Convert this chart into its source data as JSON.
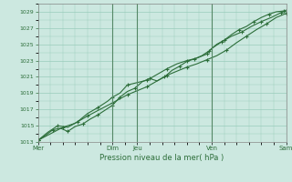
{
  "background_color": "#cce8e0",
  "plot_bg_color": "#cce8e0",
  "grid_color": "#99ccbb",
  "line_color": "#2d6e3a",
  "marker_color": "#2d6e3a",
  "xlabel": "Pression niveau de la mer( hPa )",
  "ylim": [
    1013,
    1030
  ],
  "yticks": [
    1013,
    1015,
    1017,
    1019,
    1021,
    1023,
    1025,
    1027,
    1029
  ],
  "xtick_labels": [
    "Mer",
    "Dim",
    "Jeu",
    "Ven",
    "Sam"
  ],
  "xtick_positions": [
    0,
    3,
    4,
    7,
    10
  ],
  "day_lines": [
    3,
    4,
    7,
    10
  ],
  "series1_x": [
    0.0,
    0.3,
    0.6,
    0.9,
    1.2,
    1.5,
    1.8,
    2.1,
    2.4,
    2.7,
    3.0,
    3.15,
    3.3,
    3.6,
    3.9,
    4.2,
    4.5,
    4.8,
    5.1,
    5.4,
    5.7,
    6.0,
    6.3,
    6.6,
    6.9,
    7.2,
    7.5,
    7.8,
    8.1,
    8.4,
    8.7,
    9.0,
    9.3,
    9.6,
    9.9,
    10.0
  ],
  "series1_y": [
    1013.2,
    1013.8,
    1014.5,
    1014.7,
    1014.3,
    1014.9,
    1015.2,
    1015.8,
    1016.3,
    1016.9,
    1017.5,
    1018.0,
    1018.5,
    1019.2,
    1019.6,
    1020.4,
    1020.8,
    1020.5,
    1021.0,
    1021.8,
    1022.3,
    1022.9,
    1023.2,
    1023.6,
    1024.2,
    1025.0,
    1025.5,
    1026.2,
    1026.8,
    1027.2,
    1027.8,
    1028.3,
    1028.7,
    1029.0,
    1029.1,
    1029.0
  ],
  "series2_x": [
    0.0,
    0.4,
    0.8,
    1.2,
    1.6,
    2.0,
    2.4,
    2.8,
    3.0,
    3.3,
    3.6,
    4.0,
    4.4,
    4.8,
    5.2,
    5.6,
    6.0,
    6.4,
    6.8,
    7.0,
    7.4,
    7.8,
    8.2,
    8.6,
    9.0,
    9.4,
    9.8,
    10.0
  ],
  "series2_y": [
    1013.2,
    1014.2,
    1015.0,
    1014.8,
    1015.5,
    1016.5,
    1017.2,
    1018.0,
    1018.5,
    1019.0,
    1020.0,
    1020.3,
    1020.6,
    1021.3,
    1022.0,
    1022.6,
    1023.0,
    1023.3,
    1023.8,
    1024.5,
    1025.3,
    1026.0,
    1026.5,
    1027.2,
    1027.8,
    1028.3,
    1028.9,
    1029.2
  ],
  "series3_x": [
    0.0,
    0.5,
    1.0,
    1.5,
    2.0,
    2.5,
    3.0,
    3.3,
    3.6,
    4.0,
    4.4,
    4.8,
    5.2,
    5.6,
    6.0,
    6.4,
    6.8,
    7.2,
    7.6,
    8.0,
    8.4,
    8.8,
    9.2,
    9.6,
    10.0
  ],
  "series3_y": [
    1013.2,
    1014.0,
    1014.8,
    1015.3,
    1016.2,
    1017.0,
    1017.8,
    1018.3,
    1018.8,
    1019.3,
    1019.8,
    1020.5,
    1021.2,
    1021.7,
    1022.2,
    1022.6,
    1023.1,
    1023.6,
    1024.3,
    1025.2,
    1026.0,
    1026.8,
    1027.5,
    1028.3,
    1028.8
  ]
}
